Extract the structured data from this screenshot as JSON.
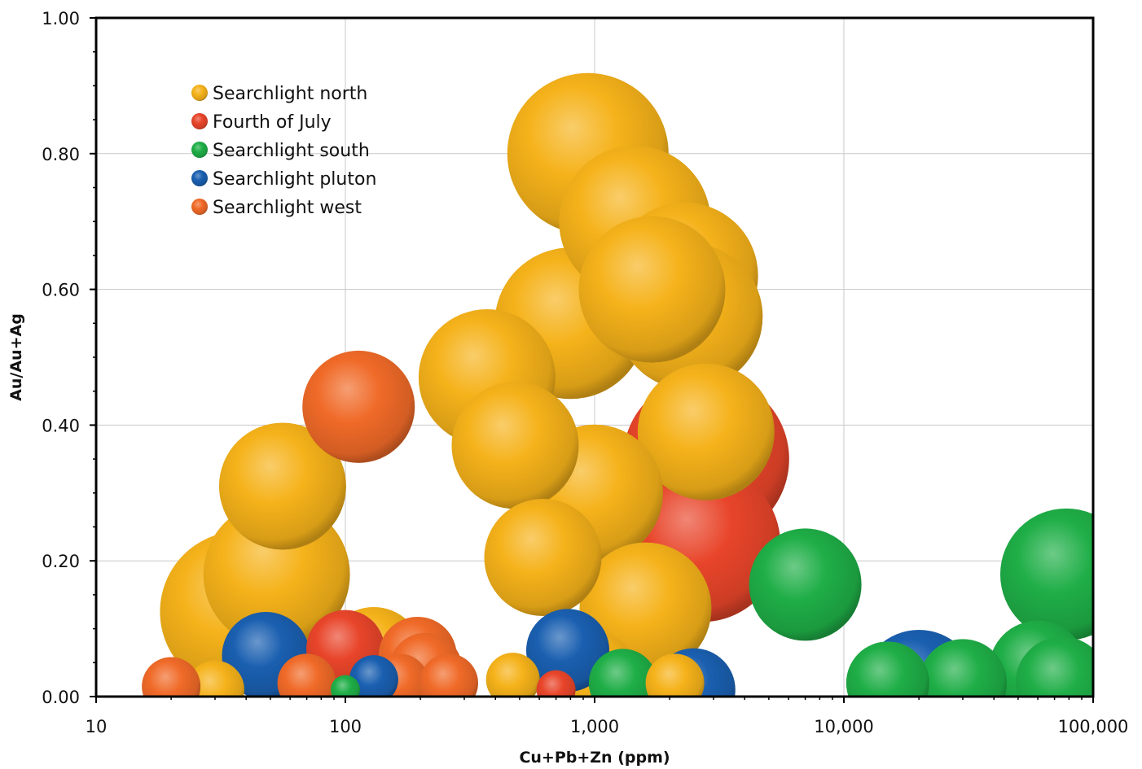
{
  "chart_data": {
    "type": "scatter",
    "title": "",
    "xlabel": "Cu+Pb+Zn (ppm)",
    "ylabel": "Au/Au+Ag",
    "x_scale": "log",
    "xlim": [
      10,
      100000
    ],
    "ylim": [
      0,
      1.0
    ],
    "x_ticks": [
      10,
      100,
      1000,
      10000,
      100000
    ],
    "x_tick_labels": [
      "10",
      "100",
      "1,000",
      "10,000",
      "100,000"
    ],
    "y_ticks": [
      0,
      0.2,
      0.4,
      0.6,
      0.8,
      1.0
    ],
    "y_tick_labels": [
      "0.00",
      "0.20",
      "0.40",
      "0.60",
      "0.80",
      "1.00"
    ],
    "grid": true,
    "legend_position": "top-left",
    "series": [
      {
        "name": "Searchlight north",
        "color": "#F5B21A",
        "points": [
          {
            "x": 38,
            "y": 0.125,
            "size": 3.3
          },
          {
            "x": 53,
            "y": 0.18,
            "size": 3.0
          },
          {
            "x": 56,
            "y": 0.31,
            "size": 2.6
          },
          {
            "x": 30,
            "y": 0.01,
            "size": 1.2
          },
          {
            "x": 130,
            "y": 0.06,
            "size": 2.0
          },
          {
            "x": 370,
            "y": 0.47,
            "size": 2.8
          },
          {
            "x": 480,
            "y": 0.37,
            "size": 2.6
          },
          {
            "x": 800,
            "y": 0.55,
            "size": 3.1
          },
          {
            "x": 940,
            "y": 0.8,
            "size": 3.3
          },
          {
            "x": 1450,
            "y": 0.7,
            "size": 3.1
          },
          {
            "x": 2300,
            "y": 0.62,
            "size": 3.0
          },
          {
            "x": 2400,
            "y": 0.56,
            "size": 3.0
          },
          {
            "x": 1700,
            "y": 0.6,
            "size": 3.0
          },
          {
            "x": 2800,
            "y": 0.39,
            "size": 2.8
          },
          {
            "x": 1000,
            "y": 0.3,
            "size": 2.8
          },
          {
            "x": 620,
            "y": 0.205,
            "size": 2.4
          },
          {
            "x": 1600,
            "y": 0.13,
            "size": 2.7
          },
          {
            "x": 1000,
            "y": 0.03,
            "size": 1.8
          },
          {
            "x": 470,
            "y": 0.025,
            "size": 1.1
          },
          {
            "x": 2100,
            "y": 0.02,
            "size": 1.2
          }
        ]
      },
      {
        "name": "Fourth of July",
        "color": "#E8452A",
        "points": [
          {
            "x": 2800,
            "y": 0.35,
            "size": 3.4
          },
          {
            "x": 2700,
            "y": 0.225,
            "size": 3.2
          },
          {
            "x": 100,
            "y": 0.07,
            "size": 1.6
          },
          {
            "x": 700,
            "y": 0.01,
            "size": 0.8
          }
        ]
      },
      {
        "name": "Searchlight south",
        "color": "#1FAE47",
        "points": [
          {
            "x": 7000,
            "y": 0.165,
            "size": 2.3
          },
          {
            "x": 78000,
            "y": 0.18,
            "size": 2.7
          },
          {
            "x": 60000,
            "y": 0.04,
            "size": 2.0
          },
          {
            "x": 75000,
            "y": 0.02,
            "size": 1.9
          },
          {
            "x": 15000,
            "y": 0.02,
            "size": 1.7
          },
          {
            "x": 30000,
            "y": 0.02,
            "size": 1.8
          },
          {
            "x": 1300,
            "y": 0.02,
            "size": 1.4
          },
          {
            "x": 100,
            "y": 0.01,
            "size": 0.6
          }
        ]
      },
      {
        "name": "Searchlight pluton",
        "color": "#1A5FB0",
        "points": [
          {
            "x": 48,
            "y": 0.06,
            "size": 1.8
          },
          {
            "x": 780,
            "y": 0.068,
            "size": 1.7
          },
          {
            "x": 2500,
            "y": 0.01,
            "size": 1.7
          },
          {
            "x": 20000,
            "y": 0.012,
            "size": 2.4
          },
          {
            "x": 130,
            "y": 0.025,
            "size": 1.0
          }
        ]
      },
      {
        "name": "Searchlight west",
        "color": "#F06A28",
        "points": [
          {
            "x": 113,
            "y": 0.427,
            "size": 2.3
          },
          {
            "x": 20,
            "y": 0.015,
            "size": 1.2
          },
          {
            "x": 70,
            "y": 0.02,
            "size": 1.2
          },
          {
            "x": 195,
            "y": 0.06,
            "size": 1.6
          },
          {
            "x": 210,
            "y": 0.04,
            "size": 1.5
          },
          {
            "x": 165,
            "y": 0.02,
            "size": 1.2
          },
          {
            "x": 260,
            "y": 0.02,
            "size": 1.2
          }
        ]
      }
    ]
  }
}
